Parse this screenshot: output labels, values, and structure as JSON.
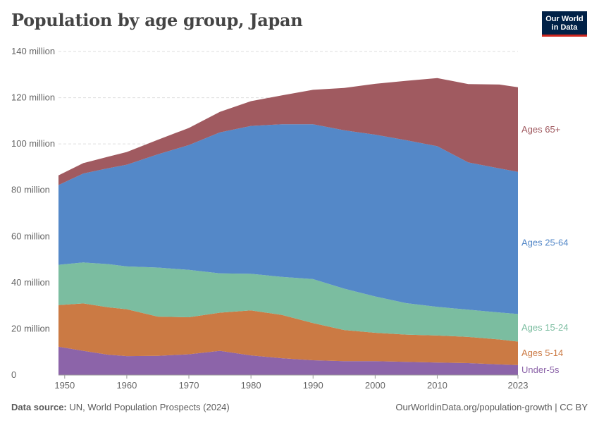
{
  "header": {
    "title": "Population by age group, Japan",
    "logo_line1": "Our World",
    "logo_line2": "in Data"
  },
  "footer": {
    "source_label": "Data source:",
    "source_text": "UN, World Population Prospects (2024)",
    "attribution": "OurWorldinData.org/population-growth | CC BY"
  },
  "chart_data": {
    "type": "area",
    "stacked": true,
    "title": "Population by age group, Japan",
    "xlim": [
      1949,
      2023
    ],
    "ylim": [
      0,
      140
    ],
    "y_unit": "million",
    "y_ticks": [
      "0",
      "20 million",
      "40 million",
      "60 million",
      "80 million",
      "100 million",
      "120 million",
      "140 million"
    ],
    "y_tick_values": [
      0,
      20,
      40,
      60,
      80,
      100,
      120,
      140
    ],
    "x_ticks": [
      "1950",
      "1960",
      "1970",
      "1980",
      "1990",
      "2000",
      "2010",
      "2023"
    ],
    "x_tick_values": [
      1950,
      1960,
      1970,
      1980,
      1990,
      2000,
      2010,
      2023
    ],
    "grid": true,
    "legend": "right, inline labels",
    "x": [
      1949,
      1953,
      1957,
      1960,
      1965,
      1970,
      1975,
      1980,
      1985,
      1990,
      1995,
      2000,
      2005,
      2010,
      2015,
      2020,
      2023
    ],
    "series": [
      {
        "name": "Under-5s",
        "color": "#8c64a9",
        "values": [
          12.3,
          10.5,
          8.8,
          8.2,
          8.3,
          9.0,
          10.5,
          8.5,
          7.3,
          6.4,
          6.0,
          6.0,
          5.7,
          5.4,
          5.2,
          4.6,
          4.3
        ]
      },
      {
        "name": "Ages 5-14",
        "color": "#cb7a44",
        "values": [
          18.0,
          20.5,
          20.5,
          20.3,
          17.0,
          16.0,
          16.5,
          19.5,
          18.7,
          16.1,
          13.5,
          12.3,
          11.8,
          11.7,
          11.3,
          10.8,
          10.2
        ]
      },
      {
        "name": "Ages 15-24",
        "color": "#7bbda0",
        "values": [
          17.4,
          17.7,
          18.7,
          18.5,
          21.2,
          20.5,
          17.0,
          15.8,
          16.5,
          19.0,
          17.9,
          15.7,
          13.6,
          12.4,
          11.8,
          11.7,
          11.9
        ]
      },
      {
        "name": "Ages 25-64",
        "color": "#5488c8",
        "values": [
          34.5,
          38.5,
          41.5,
          44.0,
          49.0,
          54.0,
          61.0,
          64.0,
          66.0,
          67.0,
          68.5,
          70.0,
          70.5,
          69.5,
          63.7,
          62.3,
          61.5
        ]
      },
      {
        "name": "Ages 65+",
        "color": "#a05a60",
        "values": [
          4.2,
          4.5,
          5.0,
          5.5,
          6.3,
          7.4,
          8.9,
          10.7,
          12.5,
          14.9,
          18.3,
          22.0,
          25.7,
          29.5,
          33.9,
          36.3,
          36.6
        ]
      }
    ]
  }
}
